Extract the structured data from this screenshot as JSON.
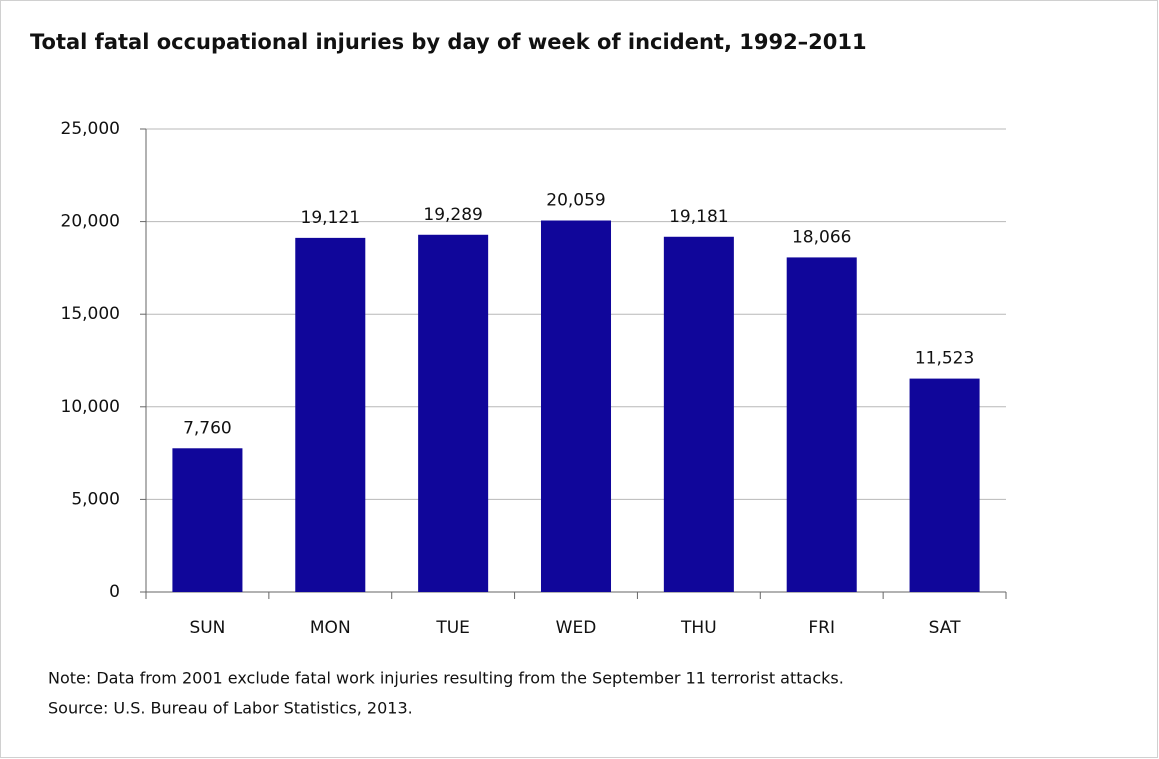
{
  "chart_data": {
    "type": "bar",
    "title": "Total fatal occupational injuries by day of week of incident, 1992–2011",
    "categories": [
      "SUN",
      "MON",
      "TUE",
      "WED",
      "THU",
      "FRI",
      "SAT"
    ],
    "values": [
      7760,
      19121,
      19289,
      20059,
      19181,
      18066,
      11523
    ],
    "value_labels": [
      "7,760",
      "19,121",
      "19,289",
      "20,059",
      "19,181",
      "18,066",
      "11,523"
    ],
    "color": "#10069a",
    "ylim": [
      0,
      25000
    ],
    "yticks": [
      0,
      {
        "value": 5000,
        "label": "5,000"
      },
      {
        "value": 10000,
        "label": "10,000"
      },
      {
        "value": 15000,
        "label": "15,000"
      },
      {
        "value": 20000,
        "label": "20,000"
      },
      {
        "value": 25000,
        "label": "25,000"
      }
    ],
    "grid": true,
    "note": "Note: Data from 2001 exclude fatal work injuries resulting from the September 11 terrorist attacks.",
    "source": "Source: U.S. Bureau of Labor Statistics, 2013."
  }
}
